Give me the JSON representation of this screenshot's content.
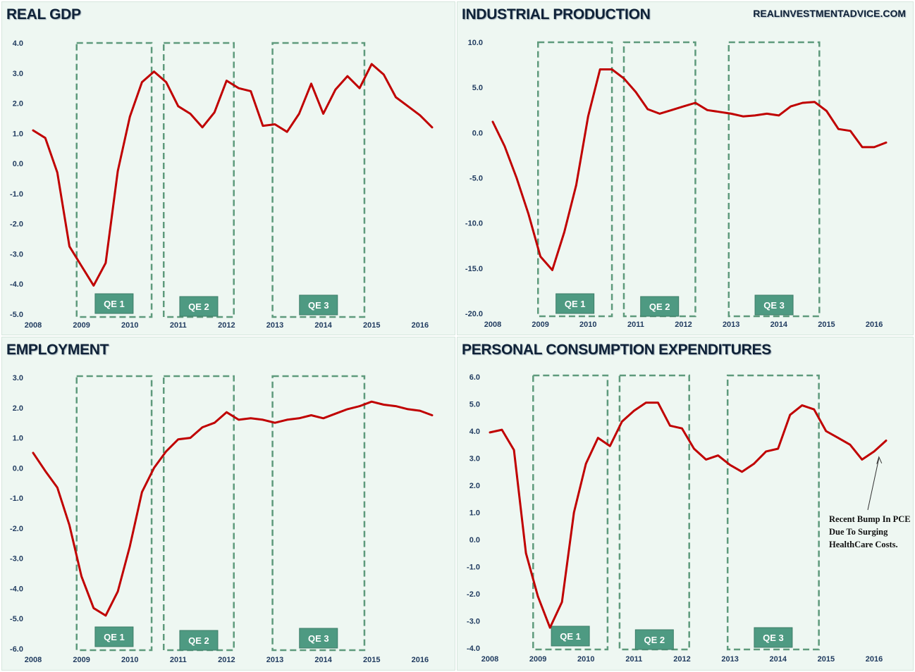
{
  "watermark": "REALINVESTMENTADVICE.COM",
  "colors": {
    "series": "#c00000",
    "qe_box": "#5e9a7c",
    "qe_label_bg": "#4e9a82",
    "background": "#eef7f2",
    "axis_text": "#1f3a5f"
  },
  "chart_data": [
    {
      "type": "line",
      "title": "REAL GDP",
      "x_ticks": [
        2008,
        2009,
        2010,
        2011,
        2012,
        2013,
        2014,
        2015,
        2016
      ],
      "y_ticks": [
        "4.0",
        "3.0",
        "2.0",
        "1.0",
        "0.0",
        "-1.0",
        "-2.0",
        "-3.0",
        "-4.0",
        "-5.0"
      ],
      "xlim": [
        2008,
        2016.25
      ],
      "ylim": [
        -5,
        4
      ],
      "x": [
        2008.0,
        2008.25,
        2008.5,
        2008.75,
        2009.0,
        2009.25,
        2009.5,
        2009.75,
        2010.0,
        2010.25,
        2010.5,
        2010.75,
        2011.0,
        2011.25,
        2011.5,
        2011.75,
        2012.0,
        2012.25,
        2012.5,
        2012.75,
        2013.0,
        2013.25,
        2013.5,
        2013.75,
        2014.0,
        2014.25,
        2014.5,
        2014.75,
        2015.0,
        2015.25,
        2015.5,
        2015.75,
        2016.0,
        2016.25
      ],
      "values": [
        1.1,
        0.85,
        -0.3,
        -2.75,
        -3.4,
        -4.05,
        -3.3,
        -0.25,
        1.55,
        2.7,
        3.05,
        2.7,
        1.9,
        1.65,
        1.2,
        1.7,
        2.75,
        2.5,
        2.4,
        1.25,
        1.3,
        1.05,
        1.65,
        2.65,
        1.65,
        2.45,
        2.9,
        2.5,
        3.3,
        2.95,
        2.2,
        1.9,
        1.6,
        1.2
      ],
      "qe_periods": [
        {
          "label": "QE 1",
          "start": 2008.9,
          "end": 2010.45
        },
        {
          "label": "QE 2",
          "start": 2010.7,
          "end": 2012.15
        },
        {
          "label": "QE 3",
          "start": 2012.95,
          "end": 2014.85
        }
      ]
    },
    {
      "type": "line",
      "title": "INDUSTRIAL PRODUCTION",
      "x_ticks": [
        2008,
        2009,
        2010,
        2011,
        2012,
        2013,
        2014,
        2015,
        2016
      ],
      "y_ticks": [
        "10.0",
        "5.0",
        "0.0",
        "-5.0",
        "-10.0",
        "-15.0",
        "-20.0"
      ],
      "xlim": [
        2008,
        2016.25
      ],
      "ylim": [
        -20,
        10
      ],
      "x": [
        2008.0,
        2008.25,
        2008.5,
        2008.75,
        2009.0,
        2009.25,
        2009.5,
        2009.75,
        2010.0,
        2010.25,
        2010.5,
        2010.75,
        2011.0,
        2011.25,
        2011.5,
        2011.75,
        2012.0,
        2012.25,
        2012.5,
        2012.75,
        2013.0,
        2013.25,
        2013.5,
        2013.75,
        2014.0,
        2014.25,
        2014.5,
        2014.75,
        2015.0,
        2015.25,
        2015.5,
        2015.75,
        2016.0,
        2016.25
      ],
      "values": [
        1.2,
        -1.5,
        -5.0,
        -9.0,
        -13.7,
        -15.2,
        -11.0,
        -5.8,
        1.8,
        7.0,
        7.0,
        6.0,
        4.5,
        2.6,
        2.1,
        2.5,
        2.9,
        3.3,
        2.5,
        2.3,
        2.1,
        1.8,
        1.9,
        2.1,
        1.9,
        2.9,
        3.3,
        3.4,
        2.4,
        0.4,
        0.2,
        -1.6,
        -1.6,
        -1.1
      ],
      "qe_periods": [
        {
          "label": "QE 1",
          "start": 2008.95,
          "end": 2010.5
        },
        {
          "label": "QE 2",
          "start": 2010.75,
          "end": 2012.25
        },
        {
          "label": "QE 3",
          "start": 2012.95,
          "end": 2014.85
        }
      ]
    },
    {
      "type": "line",
      "title": "EMPLOYMENT",
      "x_ticks": [
        2008,
        2009,
        2010,
        2011,
        2012,
        2013,
        2014,
        2015,
        2016
      ],
      "y_ticks": [
        "3.0",
        "2.0",
        "1.0",
        "0.0",
        "-1.0",
        "-2.0",
        "-3.0",
        "-4.0",
        "-5.0",
        "-6.0"
      ],
      "xlim": [
        2008,
        2016.25
      ],
      "ylim": [
        -6,
        3
      ],
      "x": [
        2008.0,
        2008.25,
        2008.5,
        2008.75,
        2009.0,
        2009.25,
        2009.5,
        2009.75,
        2010.0,
        2010.25,
        2010.5,
        2010.75,
        2011.0,
        2011.25,
        2011.5,
        2011.75,
        2012.0,
        2012.25,
        2012.5,
        2012.75,
        2013.0,
        2013.25,
        2013.5,
        2013.75,
        2014.0,
        2014.25,
        2014.5,
        2014.75,
        2015.0,
        2015.25,
        2015.5,
        2015.75,
        2016.0,
        2016.25
      ],
      "values": [
        0.5,
        -0.1,
        -0.65,
        -1.9,
        -3.6,
        -4.65,
        -4.9,
        -4.1,
        -2.6,
        -0.8,
        0.0,
        0.55,
        0.95,
        1.0,
        1.35,
        1.5,
        1.85,
        1.6,
        1.65,
        1.6,
        1.5,
        1.6,
        1.65,
        1.75,
        1.65,
        1.8,
        1.95,
        2.05,
        2.2,
        2.1,
        2.05,
        1.95,
        1.9,
        1.75
      ],
      "qe_periods": [
        {
          "label": "QE 1",
          "start": 2008.9,
          "end": 2010.45
        },
        {
          "label": "QE 2",
          "start": 2010.7,
          "end": 2012.15
        },
        {
          "label": "QE 3",
          "start": 2012.95,
          "end": 2014.85
        }
      ]
    },
    {
      "type": "line",
      "title": "PERSONAL CONSUMPTION EXPENDITURES",
      "x_ticks": [
        2008,
        2009,
        2010,
        2011,
        2012,
        2013,
        2014,
        2015,
        2016
      ],
      "y_ticks": [
        "6.0",
        "5.0",
        "4.0",
        "3.0",
        "2.0",
        "1.0",
        "0.0",
        "-1.0",
        "-2.0",
        "-3.0",
        "-4.0"
      ],
      "xlim": [
        2008,
        2016.25
      ],
      "ylim": [
        -4,
        6
      ],
      "x": [
        2008.0,
        2008.25,
        2008.5,
        2008.75,
        2009.0,
        2009.25,
        2009.5,
        2009.75,
        2010.0,
        2010.25,
        2010.5,
        2010.75,
        2011.0,
        2011.25,
        2011.5,
        2011.75,
        2012.0,
        2012.25,
        2012.5,
        2012.75,
        2013.0,
        2013.25,
        2013.5,
        2013.75,
        2014.0,
        2014.25,
        2014.5,
        2014.75,
        2015.0,
        2015.25,
        2015.5,
        2015.75,
        2016.0,
        2016.25
      ],
      "values": [
        3.95,
        4.05,
        3.3,
        -0.5,
        -2.1,
        -3.25,
        -2.3,
        1.0,
        2.8,
        3.75,
        3.45,
        4.35,
        4.75,
        5.05,
        5.05,
        4.2,
        4.1,
        3.35,
        2.95,
        3.1,
        2.75,
        2.5,
        2.8,
        3.25,
        3.35,
        4.6,
        4.95,
        4.8,
        4.0,
        3.75,
        3.5,
        2.95,
        3.25,
        3.65
      ],
      "qe_periods": [
        {
          "label": "QE 1",
          "start": 2008.9,
          "end": 2010.45
        },
        {
          "label": "QE 2",
          "start": 2010.7,
          "end": 2012.15
        },
        {
          "label": "QE 3",
          "start": 2012.95,
          "end": 2014.85
        }
      ],
      "annotation": {
        "lines": [
          "Recent Bump In PCE",
          "Due To Surging",
          "HealthCare Costs."
        ],
        "points_to": {
          "x": 2016.1,
          "y": 3.1
        }
      }
    }
  ]
}
